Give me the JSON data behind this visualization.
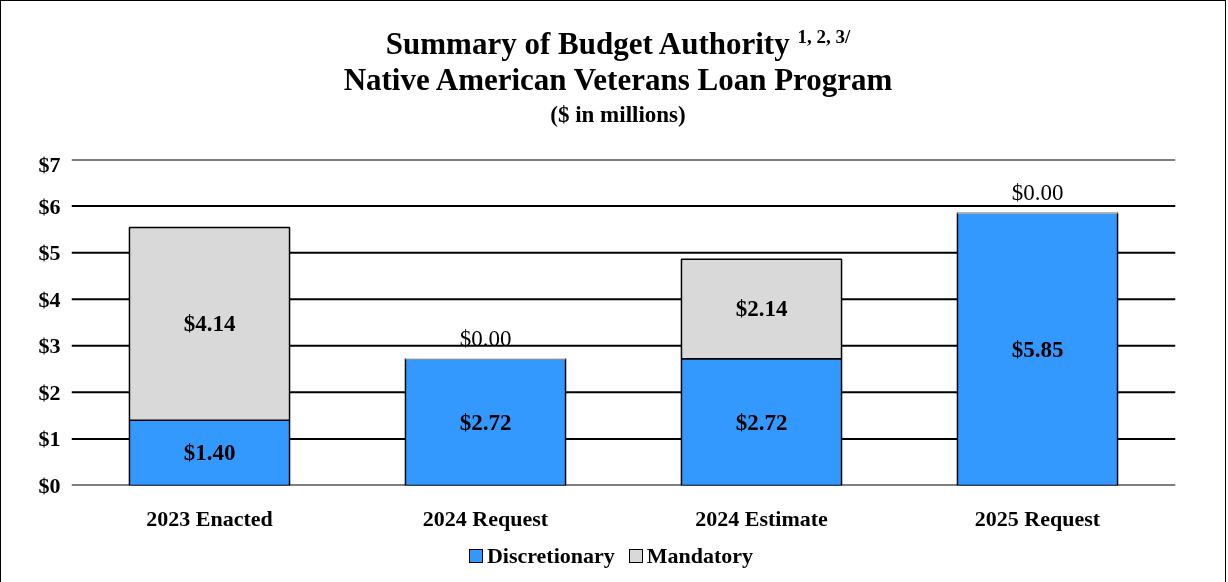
{
  "chart_data": {
    "type": "bar",
    "stacked": true,
    "title": "Summary of Budget Authority $^{1, 2, 3/}$",
    "subtitle": "Native American Veterans Loan Program",
    "annotations": [
      "($ in millions)"
    ],
    "categories": [
      "2023 Enacted",
      "2024 Request",
      "2024 Estimate",
      "2025 Request"
    ],
    "series": [
      {
        "name": "Discretionary",
        "color": "#3399ff",
        "values": [
          1.4,
          2.72,
          2.72,
          5.85
        ],
        "value_labels": [
          "$1.40",
          "$2.72",
          "$2.72",
          "$5.85"
        ]
      },
      {
        "name": "Mandatory",
        "color": "#d9d9d9",
        "values": [
          4.14,
          0.0,
          2.14,
          0.0
        ],
        "value_labels": [
          "$4.14",
          "$0.00",
          "$2.14",
          "$0.00"
        ]
      }
    ],
    "ylim": [
      0,
      7
    ],
    "yticks": [
      {
        "value": 0,
        "label": "$0"
      },
      {
        "value": 1,
        "label": "$1"
      },
      {
        "value": 2,
        "label": "$2"
      },
      {
        "value": 3,
        "label": "$3"
      },
      {
        "value": 4,
        "label": "$4"
      },
      {
        "value": 5,
        "label": "$5"
      },
      {
        "value": 6,
        "label": "$6"
      },
      {
        "value": 7,
        "label": "$7"
      }
    ],
    "grid": "y",
    "legend": "bottom"
  }
}
